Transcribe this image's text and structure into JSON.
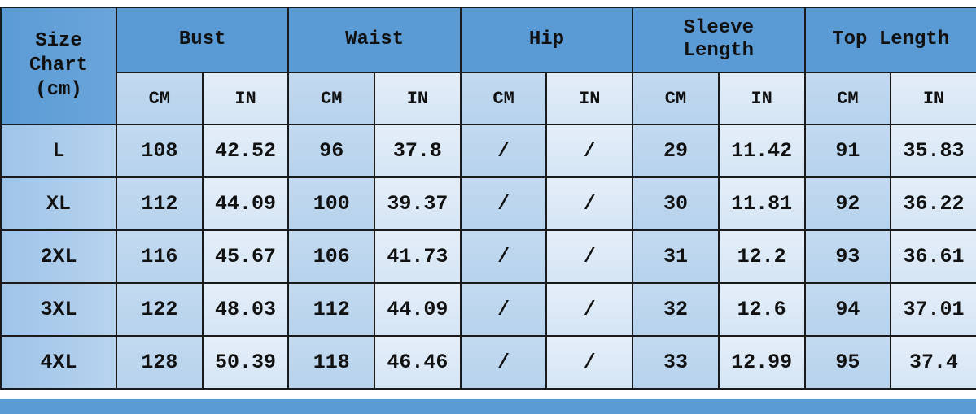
{
  "corner_label": [
    "Size",
    "Chart",
    "(cm)"
  ],
  "groups": [
    "Bust",
    "Waist",
    "Hip",
    "Sleeve Length",
    "Top Length"
  ],
  "units": {
    "cm": "CM",
    "in": "IN"
  },
  "rows": [
    {
      "size": "L",
      "values": [
        "108",
        "42.52",
        "96",
        "37.8",
        "/",
        "/",
        "29",
        "11.42",
        "91",
        "35.83"
      ]
    },
    {
      "size": "XL",
      "values": [
        "112",
        "44.09",
        "100",
        "39.37",
        "/",
        "/",
        "30",
        "11.81",
        "92",
        "36.22"
      ]
    },
    {
      "size": "2XL",
      "values": [
        "116",
        "45.67",
        "106",
        "41.73",
        "/",
        "/",
        "31",
        "12.2",
        "93",
        "36.61"
      ]
    },
    {
      "size": "3XL",
      "values": [
        "122",
        "48.03",
        "112",
        "44.09",
        "/",
        "/",
        "32",
        "12.6",
        "94",
        "37.01"
      ]
    },
    {
      "size": "4XL",
      "values": [
        "128",
        "50.39",
        "118",
        "46.46",
        "/",
        "/",
        "33",
        "12.99",
        "95",
        "37.4"
      ]
    }
  ],
  "colors": {
    "header": "#5b9bd5",
    "cm_col": "#bcd6ee",
    "in_col": "#dde9f6"
  }
}
